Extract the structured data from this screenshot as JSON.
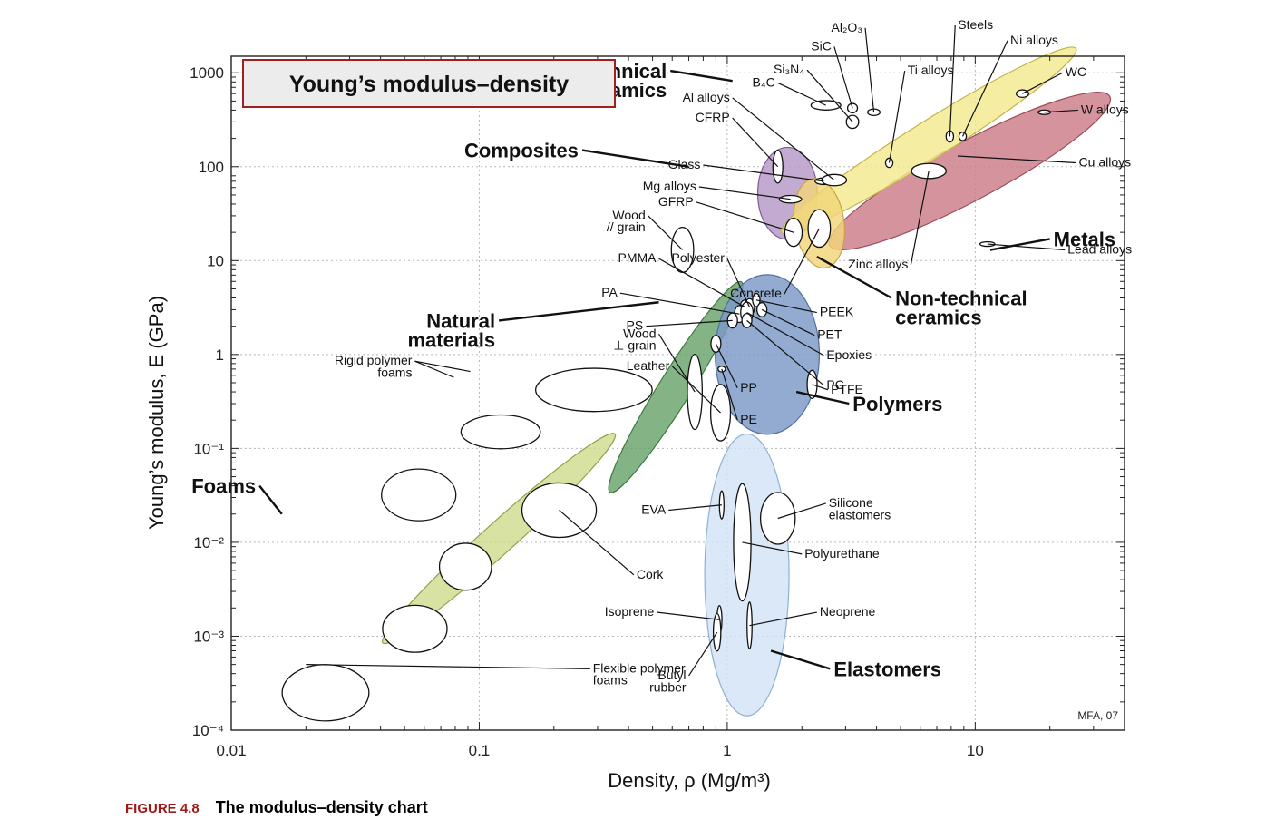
{
  "chart_data": {
    "type": "scatter",
    "subtype": "material-property-bubble-chart",
    "title": "Young’s modulus–density",
    "xlabel": "Density, ρ  (Mg/m³)",
    "ylabel": "Young’s modulus, E (GPa)",
    "x_scale": "log",
    "y_scale": "log",
    "xlim": [
      0.01,
      40
    ],
    "ylim": [
      0.0001,
      1500
    ],
    "x_ticks": [
      {
        "value": 0.01,
        "label": "0.01"
      },
      {
        "value": 0.1,
        "label": "0.1"
      },
      {
        "value": 1,
        "label": "1"
      },
      {
        "value": 10,
        "label": "10"
      }
    ],
    "y_ticks": [
      {
        "value": 1000,
        "label": "1000"
      },
      {
        "value": 100,
        "label": "100"
      },
      {
        "value": 10,
        "label": "10"
      },
      {
        "value": 1,
        "label": "1"
      },
      {
        "value": 0.1,
        "label": "10⁻¹"
      },
      {
        "value": 0.01,
        "label": "10⁻²"
      },
      {
        "value": 0.001,
        "label": "10⁻³"
      },
      {
        "value": 0.0001,
        "label": "10⁻⁴"
      }
    ],
    "grid": true,
    "credit": "MFA, 07",
    "families": [
      {
        "name": "Foams",
        "label_pos": [
          0.013,
          0.04
        ],
        "label_anchor": [
          0.016,
          0.02
        ],
        "color": "#cfdc8e",
        "stroke": "#8fa24a",
        "cx": 0.12,
        "cy": 0.011,
        "rx": 0.63,
        "ry": 0.165,
        "angle": -42
      },
      {
        "name": "Natural\nmaterials",
        "label_pos": [
          0.12,
          2.3
        ],
        "label_anchor": [
          0.53,
          3.6
        ],
        "color": "#69a46b",
        "stroke": "#3c7a3e",
        "cx": 0.62,
        "cy": 0.45,
        "rx": 0.5,
        "ry": 0.17,
        "angle": -58
      },
      {
        "name": "Polymers",
        "label_pos": [
          3.1,
          0.3
        ],
        "label_anchor": [
          1.9,
          0.4
        ],
        "color": "#7b98c6",
        "stroke": "#52719e",
        "cx": 1.45,
        "cy": 1.0,
        "rx": 0.21,
        "ry": 0.85,
        "angle": 0
      },
      {
        "name": "Elastomers",
        "label_pos": [
          2.6,
          0.00045
        ],
        "label_anchor": [
          1.5,
          0.0007
        ],
        "color": "#d2e3f5",
        "stroke": "#8fb0d3",
        "cx": 1.2,
        "cy": 0.0045,
        "rx": 0.17,
        "ry": 1.5,
        "angle": 0
      },
      {
        "name": "Composites",
        "label_pos": [
          0.26,
          150
        ],
        "label_anchor": [
          0.7,
          100
        ],
        "color": "#b497c6",
        "stroke": "#7d5c95",
        "cx": 1.75,
        "cy": 52,
        "rx": 0.12,
        "ry": 0.49,
        "angle": 0
      },
      {
        "name": "Metals",
        "label_pos": [
          20,
          17
        ],
        "label_anchor": [
          11.5,
          13
        ],
        "color": "#cc7d87",
        "stroke": "#9b4c57",
        "cx": 9.5,
        "cy": 90,
        "rx": 0.64,
        "ry": 0.31,
        "angle": -28
      },
      {
        "name": "Technical\nceramics",
        "label_pos": [
          0.59,
          1050
        ],
        "label_anchor": [
          1.05,
          820
        ],
        "color": "#f3ea8e",
        "stroke": "#c4b24a",
        "cx": 6.5,
        "cy": 190,
        "rx": 0.7,
        "ry": 0.2,
        "angle": -32
      },
      {
        "name": "Non-technical\nceramics",
        "label_pos": [
          4.6,
          4.0
        ],
        "label_anchor": [
          2.3,
          11
        ],
        "color": "#f1d679",
        "stroke": "#c9a34a",
        "cx": 2.35,
        "cy": 25,
        "rx": 0.1,
        "ry": 0.48,
        "angle": -8
      }
    ],
    "materials": [
      {
        "name": "Rigid polymer\nfoams",
        "density": 0.29,
        "modulus": 0.42,
        "w": 0.47,
        "h": 0.46,
        "label_pos": [
          0.055,
          0.85
        ],
        "leaders": [
          [
            0.092,
            0.66
          ],
          [
            0.079,
            0.57
          ]
        ]
      },
      {
        "name": "",
        "density": 0.122,
        "modulus": 0.15,
        "w": 0.32,
        "h": 0.36
      },
      {
        "name": "",
        "density": 0.057,
        "modulus": 0.032,
        "w": 0.3,
        "h": 0.55
      },
      {
        "name": "",
        "density": 0.088,
        "modulus": 0.0055,
        "w": 0.21,
        "h": 0.5
      },
      {
        "name": "",
        "density": 0.055,
        "modulus": 0.0012,
        "w": 0.26,
        "h": 0.5
      },
      {
        "name": "",
        "density": 0.024,
        "modulus": 0.00025,
        "w": 0.35,
        "h": 0.6
      },
      {
        "name": "Cork",
        "density": 0.21,
        "modulus": 0.022,
        "w": 0.3,
        "h": 0.58,
        "label_pos": [
          0.42,
          0.0045
        ]
      },
      {
        "name": "Wood\n// grain",
        "density": 0.66,
        "modulus": 13,
        "w": 0.09,
        "h": 0.48,
        "label_pos": [
          0.48,
          30
        ]
      },
      {
        "name": "Wood\n⊥ grain",
        "density": 0.74,
        "modulus": 0.4,
        "w": 0.06,
        "h": 0.8,
        "label_pos": [
          0.53,
          1.65
        ]
      },
      {
        "name": "Leather",
        "density": 0.94,
        "modulus": 0.24,
        "w": 0.08,
        "h": 0.6,
        "label_pos": [
          0.6,
          0.75
        ]
      },
      {
        "name": "PMMA",
        "density": 1.18,
        "modulus": 3.2,
        "w": 0.04,
        "h": 0.15,
        "label_pos": [
          0.53,
          10.5
        ]
      },
      {
        "name": "PA",
        "density": 1.12,
        "modulus": 2.7,
        "w": 0.04,
        "h": 0.18,
        "label_pos": [
          0.37,
          4.5
        ]
      },
      {
        "name": "PS",
        "density": 1.05,
        "modulus": 2.3,
        "w": 0.04,
        "h": 0.16,
        "label_pos": [
          0.47,
          2.0
        ]
      },
      {
        "name": "Polyester",
        "density": 1.23,
        "modulus": 3.2,
        "w": 0.04,
        "h": 0.18,
        "label_pos": [
          1.0,
          10.5
        ]
      },
      {
        "name": "Concrete",
        "density": 2.35,
        "modulus": 22,
        "w": 0.09,
        "h": 0.4,
        "label_pos": [
          1.7,
          4.4
        ]
      },
      {
        "name": "PEEK",
        "density": 1.31,
        "modulus": 3.8,
        "w": 0.03,
        "h": 0.14,
        "label_pos": [
          2.3,
          2.8
        ]
      },
      {
        "name": "PET",
        "density": 1.38,
        "modulus": 3.0,
        "w": 0.04,
        "h": 0.15,
        "label_pos": [
          2.25,
          1.6
        ]
      },
      {
        "name": "Epoxies",
        "density": 1.2,
        "modulus": 2.8,
        "w": 0.05,
        "h": 0.22,
        "label_pos": [
          2.45,
          0.98
        ]
      },
      {
        "name": "PC",
        "density": 1.2,
        "modulus": 2.3,
        "w": 0.04,
        "h": 0.15,
        "label_pos": [
          2.45,
          0.47
        ]
      },
      {
        "name": "PP",
        "density": 0.9,
        "modulus": 1.3,
        "w": 0.04,
        "h": 0.18,
        "label_pos": [
          1.1,
          0.44
        ]
      },
      {
        "name": "PE",
        "density": 0.95,
        "modulus": 0.7,
        "w": 0.03,
        "h": 0.06,
        "label_pos": [
          1.1,
          0.2
        ]
      },
      {
        "name": "PTFE",
        "density": 2.2,
        "modulus": 0.48,
        "w": 0.04,
        "h": 0.3,
        "label_pos": [
          2.55,
          0.42
        ]
      },
      {
        "name": "EVA",
        "density": 0.95,
        "modulus": 0.025,
        "w": 0.015,
        "h": 0.3,
        "label_pos": [
          0.58,
          0.022
        ]
      },
      {
        "name": "Isoprene",
        "density": 0.93,
        "modulus": 0.0015,
        "w": 0.02,
        "h": 0.3,
        "label_pos": [
          0.52,
          0.0018
        ]
      },
      {
        "name": "Butyl\nrubber",
        "density": 0.91,
        "modulus": 0.0011,
        "w": 0.03,
        "h": 0.4,
        "label_pos": [
          0.7,
          0.00038
        ]
      },
      {
        "name": "Silicone\nelastomers",
        "density": 1.6,
        "modulus": 0.018,
        "w": 0.14,
        "h": 0.55,
        "label_pos": [
          2.5,
          0.026
        ]
      },
      {
        "name": "Polyurethane",
        "density": 1.15,
        "modulus": 0.01,
        "w": 0.07,
        "h": 1.25,
        "label_pos": [
          2.0,
          0.0075
        ]
      },
      {
        "name": "Neoprene",
        "density": 1.23,
        "modulus": 0.0013,
        "w": 0.02,
        "h": 0.5,
        "label_pos": [
          2.3,
          0.0018
        ]
      },
      {
        "name": "Flexible polymer\nfoams",
        "density": 0.02,
        "modulus": 0.0005,
        "w": 0.01,
        "h": 0.01,
        "label_pos": [
          0.28,
          0.00045
        ]
      },
      {
        "name": "Glass",
        "density": 2.45,
        "modulus": 70,
        "w": 0.07,
        "h": 0.07,
        "label_pos": [
          0.8,
          104
        ]
      },
      {
        "name": "Mg alloys",
        "density": 1.8,
        "modulus": 45,
        "w": 0.09,
        "h": 0.08,
        "label_pos": [
          0.77,
          61
        ]
      },
      {
        "name": "GFRP",
        "density": 1.85,
        "modulus": 20,
        "w": 0.07,
        "h": 0.3,
        "label_pos": [
          0.75,
          42
        ]
      },
      {
        "name": "CFRP",
        "density": 1.6,
        "modulus": 100,
        "w": 0.04,
        "h": 0.35,
        "label_pos": [
          1.05,
          330
        ]
      },
      {
        "name": "Al alloys",
        "density": 2.7,
        "modulus": 72,
        "w": 0.1,
        "h": 0.12,
        "label_pos": [
          1.05,
          540
        ]
      },
      {
        "name": "B₄C",
        "density": 2.5,
        "modulus": 450,
        "w": 0.12,
        "h": 0.1,
        "label_pos": [
          1.6,
          780
        ]
      },
      {
        "name": "Si₃N₄",
        "density": 3.2,
        "modulus": 300,
        "w": 0.05,
        "h": 0.14,
        "label_pos": [
          2.1,
          1070
        ]
      },
      {
        "name": "SiC",
        "density": 3.2,
        "modulus": 420,
        "w": 0.04,
        "h": 0.1,
        "label_pos": [
          2.7,
          1900
        ]
      },
      {
        "name": "Al₂O₃",
        "density": 3.9,
        "modulus": 380,
        "w": 0.05,
        "h": 0.07,
        "label_pos": [
          3.6,
          3000
        ]
      },
      {
        "name": "Steels",
        "density": 7.9,
        "modulus": 210,
        "w": 0.03,
        "h": 0.12,
        "label_pos": [
          8.3,
          3200
        ]
      },
      {
        "name": "Ti alloys",
        "density": 4.5,
        "modulus": 110,
        "w": 0.03,
        "h": 0.1,
        "label_pos": [
          5.2,
          1050
        ]
      },
      {
        "name": "Ni alloys",
        "density": 8.9,
        "modulus": 210,
        "w": 0.03,
        "h": 0.09,
        "label_pos": [
          13.5,
          2200
        ]
      },
      {
        "name": "WC",
        "density": 15.5,
        "modulus": 600,
        "w": 0.05,
        "h": 0.08,
        "label_pos": [
          22.5,
          1000
        ]
      },
      {
        "name": "W alloys",
        "density": 19,
        "modulus": 380,
        "w": 0.05,
        "h": 0.04,
        "label_pos": [
          26,
          400
        ]
      },
      {
        "name": "Cu alloys",
        "density": 8.5,
        "modulus": 130,
        "w": 0.01,
        "h": 0.08,
        "label_pos": [
          25.5,
          110
        ]
      },
      {
        "name": "Zinc alloys",
        "density": 6.5,
        "modulus": 90,
        "w": 0.14,
        "h": 0.16,
        "label_pos": [
          5.5,
          9
        ]
      },
      {
        "name": "Lead alloys",
        "density": 11.2,
        "modulus": 15,
        "w": 0.06,
        "h": 0.035,
        "label_pos": [
          23,
          13
        ]
      }
    ]
  },
  "caption": {
    "figure": "FIGURE 4.8",
    "text": "The modulus–density chart"
  }
}
